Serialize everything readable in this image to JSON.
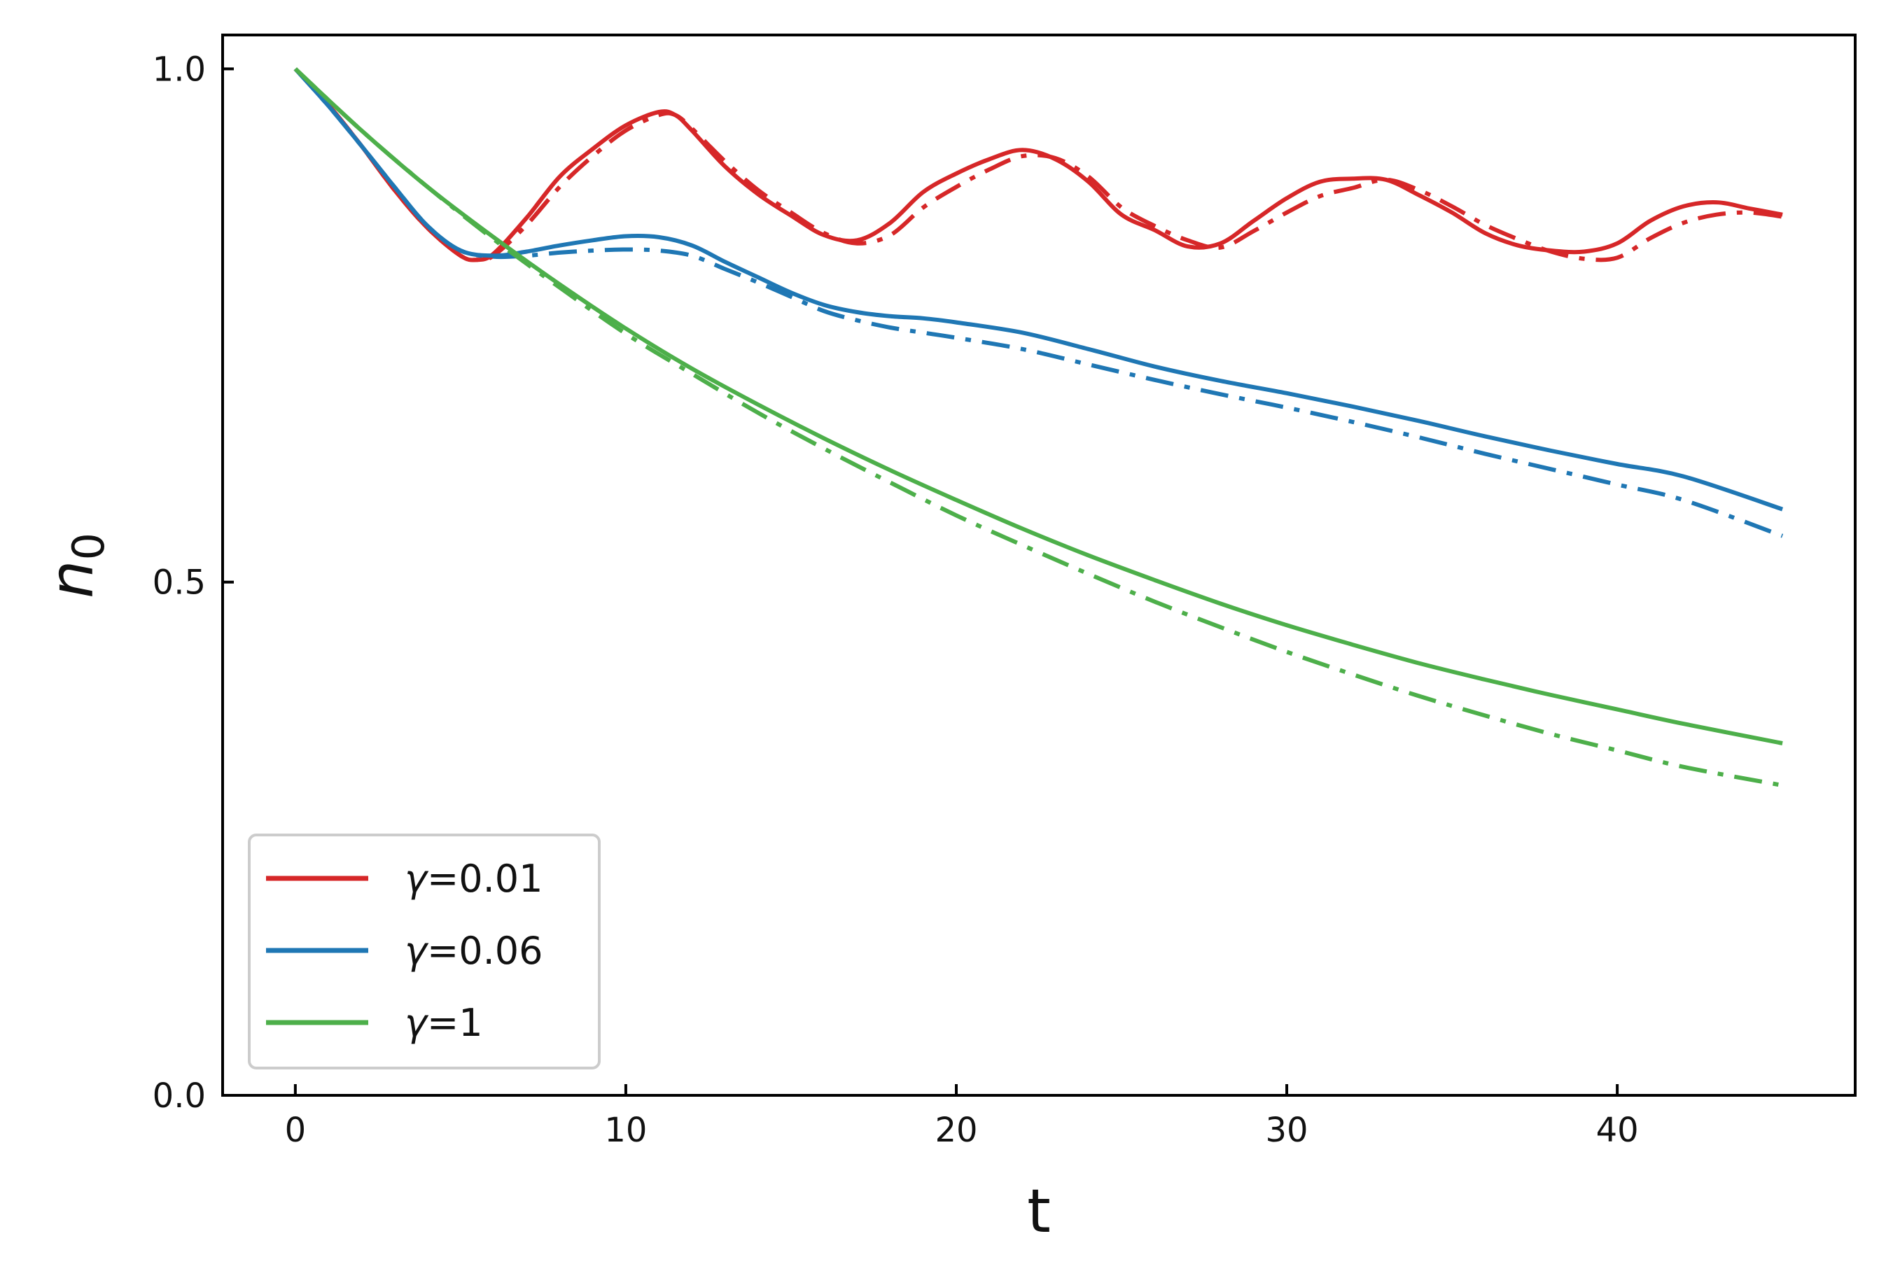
{
  "chart_data": {
    "type": "line",
    "xlabel": "t",
    "ylabel": "n0",
    "ylabel_main": "n",
    "ylabel_sub": "0",
    "xlim": [
      -2.2,
      47.2
    ],
    "ylim": [
      0.0,
      1.033
    ],
    "xticks": [
      0,
      10,
      20,
      30,
      40
    ],
    "xtick_labels": [
      "0",
      "10",
      "20",
      "30",
      "40"
    ],
    "yticks": [
      0.0,
      0.5,
      1.0
    ],
    "ytick_labels": [
      "0.0",
      "0.5",
      "1.0"
    ],
    "grid": false,
    "legend_position": "lower-left",
    "series": [
      {
        "name": "γ=0.01",
        "label_symbol": "γ",
        "label_value": "=0.01",
        "color": "#d62728",
        "style": "solid",
        "x": [
          0,
          1,
          2,
          3,
          4,
          5,
          5.5,
          6,
          7,
          8,
          9,
          10,
          11,
          11.5,
          12,
          13,
          14,
          15,
          16,
          17,
          18,
          19,
          20,
          21,
          22,
          23,
          24,
          25,
          26,
          27,
          28,
          29,
          30,
          31,
          32,
          33,
          34,
          35,
          36,
          37,
          38,
          39,
          40,
          41,
          42,
          43,
          44,
          45
        ],
        "y": [
          1.0,
          0.965,
          0.925,
          0.882,
          0.845,
          0.818,
          0.814,
          0.82,
          0.855,
          0.895,
          0.922,
          0.945,
          0.958,
          0.955,
          0.94,
          0.905,
          0.878,
          0.857,
          0.838,
          0.833,
          0.85,
          0.88,
          0.898,
          0.912,
          0.921,
          0.912,
          0.89,
          0.858,
          0.843,
          0.827,
          0.83,
          0.852,
          0.874,
          0.89,
          0.893,
          0.892,
          0.877,
          0.86,
          0.84,
          0.828,
          0.823,
          0.822,
          0.83,
          0.852,
          0.866,
          0.87,
          0.864,
          0.858
        ]
      },
      {
        "name": "",
        "color": "#d62728",
        "style": "dashdot",
        "x": [
          0,
          1,
          2,
          3,
          4,
          5,
          5.5,
          6,
          7,
          8,
          9,
          10,
          11,
          11.5,
          12,
          13,
          14,
          15,
          16,
          17,
          18,
          19,
          20,
          21,
          22,
          23,
          24,
          25,
          26,
          27,
          28,
          29,
          30,
          31,
          32,
          33,
          34,
          35,
          36,
          37,
          38,
          39,
          40,
          41,
          42,
          43,
          44,
          45
        ],
        "y": [
          1.0,
          0.965,
          0.925,
          0.882,
          0.845,
          0.818,
          0.814,
          0.818,
          0.848,
          0.885,
          0.915,
          0.94,
          0.955,
          0.955,
          0.942,
          0.91,
          0.882,
          0.86,
          0.84,
          0.83,
          0.838,
          0.865,
          0.885,
          0.902,
          0.915,
          0.913,
          0.895,
          0.865,
          0.847,
          0.833,
          0.826,
          0.842,
          0.86,
          0.876,
          0.884,
          0.892,
          0.882,
          0.866,
          0.848,
          0.834,
          0.822,
          0.815,
          0.816,
          0.835,
          0.85,
          0.858,
          0.86,
          0.856
        ]
      },
      {
        "name": "γ=0.06",
        "label_symbol": "γ",
        "label_value": "=0.06",
        "color": "#1f77b4",
        "style": "solid",
        "x": [
          0,
          1,
          2,
          3,
          4,
          5,
          6,
          7,
          8,
          9,
          10,
          11,
          12,
          13,
          14,
          15,
          16,
          17,
          18,
          19,
          20,
          22,
          24,
          26,
          28,
          30,
          32,
          34,
          36,
          38,
          40,
          42,
          45
        ],
        "y": [
          1.0,
          0.964,
          0.925,
          0.885,
          0.847,
          0.823,
          0.818,
          0.822,
          0.828,
          0.833,
          0.837,
          0.836,
          0.828,
          0.812,
          0.797,
          0.782,
          0.77,
          0.763,
          0.759,
          0.757,
          0.753,
          0.743,
          0.727,
          0.71,
          0.696,
          0.684,
          0.671,
          0.657,
          0.642,
          0.628,
          0.615,
          0.603,
          0.571
        ]
      },
      {
        "name": "",
        "color": "#1f77b4",
        "style": "dashdot",
        "x": [
          0,
          1,
          2,
          3,
          4,
          5,
          6,
          7,
          8,
          9,
          10,
          11,
          12,
          13,
          14,
          15,
          16,
          17,
          18,
          19,
          20,
          22,
          24,
          26,
          28,
          30,
          32,
          34,
          36,
          38,
          40,
          42,
          45
        ],
        "y": [
          1.0,
          0.964,
          0.925,
          0.885,
          0.847,
          0.823,
          0.817,
          0.818,
          0.821,
          0.823,
          0.824,
          0.823,
          0.818,
          0.805,
          0.792,
          0.778,
          0.764,
          0.755,
          0.748,
          0.743,
          0.738,
          0.727,
          0.712,
          0.697,
          0.683,
          0.67,
          0.656,
          0.641,
          0.625,
          0.61,
          0.595,
          0.58,
          0.545
        ]
      },
      {
        "name": "γ=1",
        "label_symbol": "γ",
        "label_value": "=1",
        "color": "#4daf4a",
        "style": "solid",
        "x": [
          0,
          2,
          4,
          6,
          8,
          10,
          12,
          14,
          16,
          18,
          20,
          22,
          24,
          26,
          28,
          30,
          32,
          34,
          36,
          38,
          40,
          42,
          45
        ],
        "y": [
          1.0,
          0.94,
          0.885,
          0.836,
          0.79,
          0.747,
          0.708,
          0.673,
          0.64,
          0.609,
          0.58,
          0.552,
          0.526,
          0.502,
          0.479,
          0.458,
          0.439,
          0.421,
          0.405,
          0.39,
          0.376,
          0.362,
          0.343
        ]
      },
      {
        "name": "",
        "color": "#4daf4a",
        "style": "dashdot",
        "x": [
          0,
          2,
          4,
          6,
          8,
          10,
          12,
          14,
          16,
          18,
          20,
          22,
          24,
          26,
          28,
          30,
          32,
          34,
          36,
          38,
          40,
          42,
          45
        ],
        "y": [
          1.0,
          0.94,
          0.885,
          0.834,
          0.787,
          0.742,
          0.703,
          0.665,
          0.63,
          0.597,
          0.565,
          0.536,
          0.508,
          0.481,
          0.456,
          0.432,
          0.41,
          0.389,
          0.37,
          0.352,
          0.336,
          0.32,
          0.302
        ]
      }
    ]
  }
}
